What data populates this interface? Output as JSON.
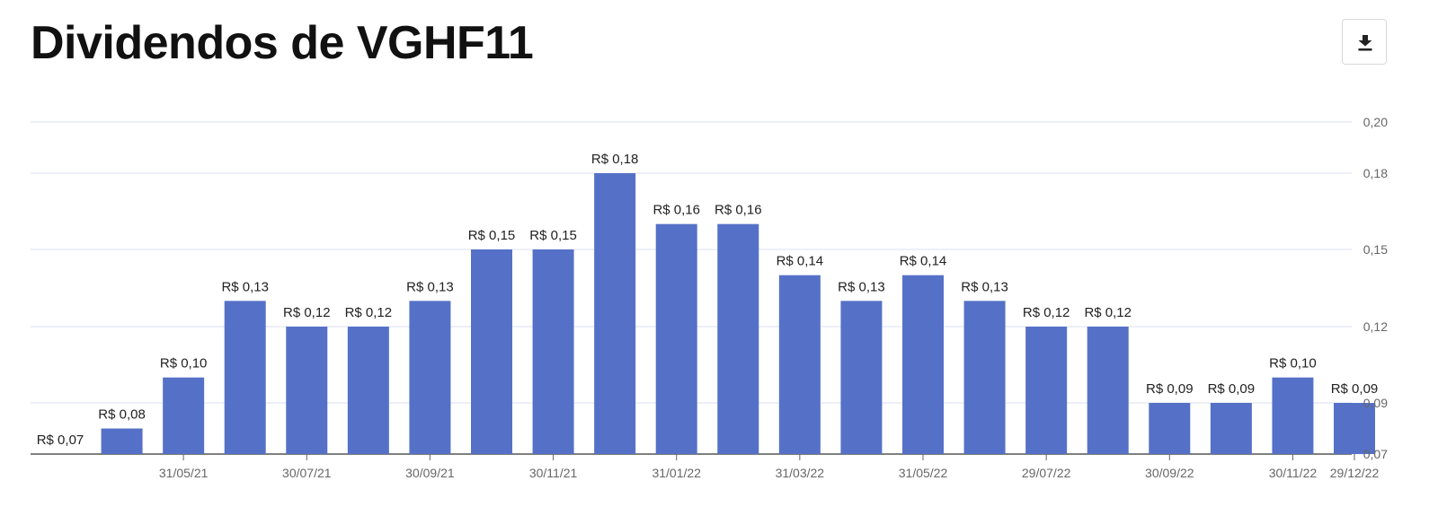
{
  "header": {
    "title": "Dividendos de VGHF11",
    "download_icon": "download-icon"
  },
  "colors": {
    "bar": "#5571c7",
    "grid": "#e2e5f3",
    "axis": "#333333"
  },
  "chart_data": {
    "type": "bar",
    "title": "Dividendos de VGHF11",
    "xlabel": "",
    "ylabel": "",
    "value_prefix": "R$ ",
    "categories": [
      "",
      "",
      "31/05/21",
      "",
      "30/07/21",
      "",
      "30/09/21",
      "",
      "30/11/21",
      "",
      "31/01/22",
      "",
      "31/03/22",
      "",
      "31/05/22",
      "",
      "29/07/22",
      "",
      "30/09/22",
      "",
      "30/11/22",
      "29/12/22"
    ],
    "values": [
      0.07,
      0.08,
      0.1,
      0.13,
      0.12,
      0.12,
      0.13,
      0.15,
      0.15,
      0.18,
      0.16,
      0.16,
      0.14,
      0.13,
      0.14,
      0.13,
      0.12,
      0.12,
      0.09,
      0.09,
      0.1,
      0.09
    ],
    "data_labels": [
      "R$ 0,07",
      "R$ 0,08",
      "R$ 0,10",
      "R$ 0,13",
      "R$ 0,12",
      "R$ 0,12",
      "R$ 0,13",
      "R$ 0,15",
      "R$ 0,15",
      "R$ 0,18",
      "R$ 0,16",
      "R$ 0,16",
      "R$ 0,14",
      "R$ 0,13",
      "R$ 0,14",
      "R$ 0,13",
      "R$ 0,12",
      "R$ 0,12",
      "R$ 0,09",
      "R$ 0,09",
      "R$ 0,10",
      "R$ 0,09"
    ],
    "y_ticks": [
      0.07,
      0.09,
      0.12,
      0.15,
      0.18,
      0.2
    ],
    "y_tick_labels": [
      "0,07",
      "0,09",
      "0,12",
      "0,15",
      "0,18",
      "0,20"
    ],
    "ylim": [
      0.07,
      0.2
    ],
    "y_axis_position": "right",
    "grid": true,
    "legend": "none"
  }
}
